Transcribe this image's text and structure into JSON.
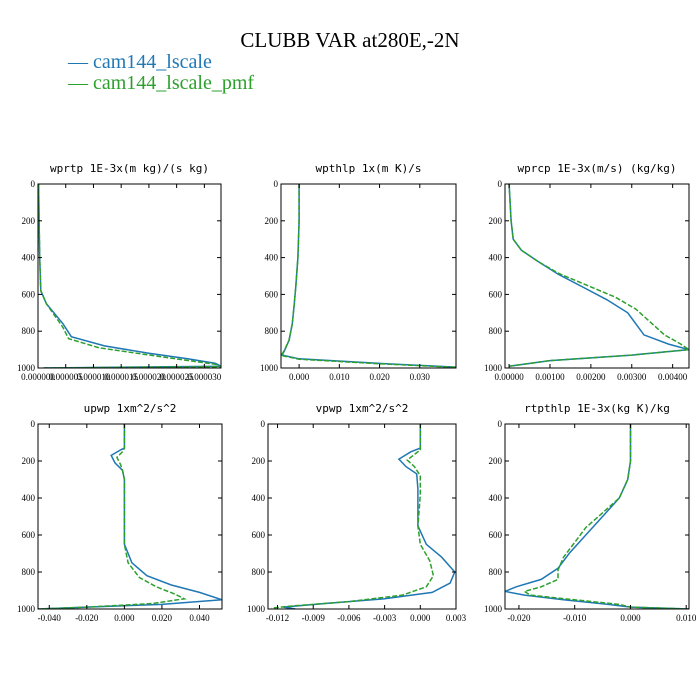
{
  "title": "CLUBB VAR at280E,-2N",
  "legend": [
    {
      "label": "— cam144_lscale",
      "color": "#1f77b4"
    },
    {
      "label": "— cam144_lscale_pmf",
      "color": "#2ca02c"
    }
  ],
  "chart_data": [
    {
      "type": "line",
      "title": "wprtp  1E-3x(m kg)/(s kg)",
      "xlim": [
        0.0,
        3.3e-05
      ],
      "ylim": [
        0,
        1000
      ],
      "y_inverted": true,
      "xticks": [
        0.0,
        5e-06,
        1e-05,
        1.5e-05,
        2e-05,
        2.5e-05,
        3e-05
      ],
      "xtick_labels": [
        "0.000000",
        "0.000005",
        "0.000010",
        "0.000015",
        "0.000020",
        "0.000025",
        "0.000030"
      ],
      "yticks": [
        0,
        200,
        400,
        600,
        800,
        1000
      ],
      "ytick_labels": [
        "0",
        "200",
        "400",
        "600",
        "800",
        "1000"
      ],
      "series": [
        {
          "name": "cam144_lscale",
          "color": "#1f77b4",
          "dashed": false,
          "points": [
            [
              1e-07,
              0
            ],
            [
              2e-07,
              200
            ],
            [
              3e-07,
              400
            ],
            [
              5e-07,
              580
            ],
            [
              1.5e-06,
              650
            ],
            [
              4.5e-06,
              760
            ],
            [
              6e-06,
              830
            ],
            [
              1.2e-05,
              880
            ],
            [
              2e-05,
              920
            ],
            [
              2.7e-05,
              950
            ],
            [
              3.2e-05,
              975
            ],
            [
              3.3e-05,
              990
            ],
            [
              1e-06,
              1000
            ]
          ]
        },
        {
          "name": "cam144_lscale_pmf",
          "color": "#2ca02c",
          "dashed": true,
          "points": [
            [
              1e-07,
              0
            ],
            [
              2e-07,
              200
            ],
            [
              3e-07,
              400
            ],
            [
              5e-07,
              580
            ],
            [
              1.5e-06,
              650
            ],
            [
              4.5e-06,
              780
            ],
            [
              5.5e-06,
              840
            ],
            [
              1.1e-05,
              890
            ],
            [
              1.9e-05,
              925
            ],
            [
              2.6e-05,
              955
            ],
            [
              3.2e-05,
              980
            ],
            [
              3.3e-05,
              993
            ],
            [
              1e-06,
              1000
            ]
          ]
        }
      ]
    },
    {
      "type": "line",
      "title": "wpthlp  1x(m K)/s",
      "xlim": [
        -0.0045,
        0.039
      ],
      "ylim": [
        0,
        1000
      ],
      "y_inverted": true,
      "xticks": [
        0.0,
        0.01,
        0.02,
        0.03
      ],
      "xtick_labels": [
        "0.000",
        "0.010",
        "0.020",
        "0.030"
      ],
      "yticks": [
        0,
        200,
        400,
        600,
        800,
        1000
      ],
      "ytick_labels": [
        "0",
        "200",
        "400",
        "600",
        "800",
        "1000"
      ],
      "series": [
        {
          "name": "cam144_lscale",
          "color": "#1f77b4",
          "dashed": false,
          "points": [
            [
              0.0,
              0
            ],
            [
              0.0,
              200
            ],
            [
              -0.0003,
              400
            ],
            [
              -0.0008,
              550
            ],
            [
              -0.0012,
              650
            ],
            [
              -0.0017,
              760
            ],
            [
              -0.0025,
              850
            ],
            [
              -0.0035,
              900
            ],
            [
              -0.0042,
              930
            ],
            [
              0.0,
              950
            ],
            [
              0.02,
              975
            ],
            [
              0.039,
              995
            ]
          ]
        },
        {
          "name": "cam144_lscale_pmf",
          "color": "#2ca02c",
          "dashed": true,
          "points": [
            [
              0.0,
              0
            ],
            [
              0.0,
              200
            ],
            [
              -0.0003,
              400
            ],
            [
              -0.0008,
              550
            ],
            [
              -0.0012,
              650
            ],
            [
              -0.0017,
              760
            ],
            [
              -0.0025,
              850
            ],
            [
              -0.0037,
              905
            ],
            [
              -0.0044,
              932
            ],
            [
              0.0,
              952
            ],
            [
              0.02,
              977
            ],
            [
              0.039,
              996
            ]
          ]
        }
      ]
    },
    {
      "type": "line",
      "title": "wprcp  1E-3x(m/s) (kg/kg)",
      "xlim": [
        -0.0001,
        0.0044
      ],
      "ylim": [
        0,
        1000
      ],
      "y_inverted": true,
      "xticks": [
        0.0,
        0.001,
        0.002,
        0.003,
        0.004
      ],
      "xtick_labels": [
        "0.00000",
        "0.00100",
        "0.00200",
        "0.00300",
        "0.00400"
      ],
      "yticks": [
        0,
        200,
        400,
        600,
        800,
        1000
      ],
      "ytick_labels": [
        "0",
        "200",
        "400",
        "600",
        "800",
        "1000"
      ],
      "series": [
        {
          "name": "cam144_lscale",
          "color": "#1f77b4",
          "dashed": false,
          "points": [
            [
              0.0,
              0
            ],
            [
              5e-05,
              200
            ],
            [
              0.0001,
              300
            ],
            [
              0.0003,
              360
            ],
            [
              0.0007,
              420
            ],
            [
              0.0012,
              490
            ],
            [
              0.0018,
              560
            ],
            [
              0.0024,
              630
            ],
            [
              0.0029,
              700
            ],
            [
              0.0031,
              760
            ],
            [
              0.0033,
              820
            ],
            [
              0.0039,
              870
            ],
            [
              0.0044,
              900
            ],
            [
              0.003,
              930
            ],
            [
              0.001,
              960
            ],
            [
              0.0,
              990
            ]
          ]
        },
        {
          "name": "cam144_lscale_pmf",
          "color": "#2ca02c",
          "dashed": true,
          "points": [
            [
              0.0,
              0
            ],
            [
              5e-05,
              200
            ],
            [
              0.0001,
              300
            ],
            [
              0.0003,
              360
            ],
            [
              0.0007,
              420
            ],
            [
              0.0012,
              485
            ],
            [
              0.0019,
              550
            ],
            [
              0.0026,
              615
            ],
            [
              0.0031,
              680
            ],
            [
              0.0035,
              760
            ],
            [
              0.0038,
              820
            ],
            [
              0.0042,
              870
            ],
            [
              0.0044,
              900
            ],
            [
              0.003,
              930
            ],
            [
              0.001,
              960
            ],
            [
              0.0,
              990
            ]
          ]
        }
      ]
    },
    {
      "type": "line",
      "title": "upwp  1xm^2/s^2",
      "xlim": [
        -0.046,
        0.052
      ],
      "ylim": [
        0,
        1000
      ],
      "y_inverted": true,
      "xticks": [
        -0.04,
        -0.02,
        0.0,
        0.02,
        0.04
      ],
      "xtick_labels": [
        "-0.040",
        "-0.020",
        "0.000",
        "0.020",
        "0.040"
      ],
      "yticks": [
        0,
        200,
        400,
        600,
        800,
        1000
      ],
      "ytick_labels": [
        "0",
        "200",
        "400",
        "600",
        "800",
        "1000"
      ],
      "series": [
        {
          "name": "cam144_lscale",
          "color": "#1f77b4",
          "dashed": false,
          "points": [
            [
              0.0,
              0
            ],
            [
              0.0,
              130
            ],
            [
              -0.002,
              140
            ],
            [
              -0.007,
              170
            ],
            [
              -0.005,
              210
            ],
            [
              -0.001,
              250
            ],
            [
              0.0,
              300
            ],
            [
              0.0,
              500
            ],
            [
              0.0,
              650
            ],
            [
              0.004,
              750
            ],
            [
              0.012,
              820
            ],
            [
              0.025,
              870
            ],
            [
              0.04,
              910
            ],
            [
              0.052,
              950
            ],
            [
              0.02,
              975
            ],
            [
              -0.02,
              990
            ],
            [
              -0.046,
              1000
            ]
          ]
        },
        {
          "name": "cam144_lscale_pmf",
          "color": "#2ca02c",
          "dashed": true,
          "points": [
            [
              0.0,
              0
            ],
            [
              0.0,
              130
            ],
            [
              -0.001,
              150
            ],
            [
              -0.004,
              180
            ],
            [
              -0.002,
              220
            ],
            [
              -0.001,
              250
            ],
            [
              0.0,
              300
            ],
            [
              0.0,
              500
            ],
            [
              0.0,
              650
            ],
            [
              0.002,
              750
            ],
            [
              0.008,
              830
            ],
            [
              0.017,
              880
            ],
            [
              0.027,
              920
            ],
            [
              0.032,
              945
            ],
            [
              0.015,
              970
            ],
            [
              -0.02,
              990
            ],
            [
              -0.046,
              1000
            ]
          ]
        }
      ]
    },
    {
      "type": "line",
      "title": "vpwp  1xm^2/s^2",
      "xlim": [
        -0.0128,
        0.003
      ],
      "ylim": [
        0,
        1000
      ],
      "y_inverted": true,
      "xticks": [
        -0.012,
        -0.009,
        -0.006,
        -0.003,
        0.0,
        0.003
      ],
      "xtick_labels": [
        "-0.012",
        "-0.009",
        "-0.006",
        "-0.003",
        "0.000",
        "0.003"
      ],
      "yticks": [
        0,
        200,
        400,
        600,
        800,
        1000
      ],
      "ytick_labels": [
        "0",
        "200",
        "400",
        "600",
        "800",
        "1000"
      ],
      "series": [
        {
          "name": "cam144_lscale",
          "color": "#1f77b4",
          "dashed": false,
          "points": [
            [
              0.0,
              0
            ],
            [
              0.0,
              130
            ],
            [
              -0.0008,
              150
            ],
            [
              -0.0018,
              190
            ],
            [
              -0.0012,
              230
            ],
            [
              -0.0003,
              270
            ],
            [
              -0.0002,
              350
            ],
            [
              -0.0002,
              450
            ],
            [
              -0.0002,
              550
            ],
            [
              0.0005,
              650
            ],
            [
              0.0018,
              720
            ],
            [
              0.0029,
              800
            ],
            [
              0.0025,
              860
            ],
            [
              0.001,
              910
            ],
            [
              -0.003,
              945
            ],
            [
              -0.008,
              970
            ],
            [
              -0.0115,
              990
            ],
            [
              -0.0105,
              1000
            ]
          ]
        },
        {
          "name": "cam144_lscale_pmf",
          "color": "#2ca02c",
          "dashed": true,
          "points": [
            [
              0.0,
              0
            ],
            [
              0.0,
              140
            ],
            [
              -0.0004,
              160
            ],
            [
              -0.0011,
              195
            ],
            [
              -0.0005,
              230
            ],
            [
              0.0,
              280
            ],
            [
              0.0,
              380
            ],
            [
              -0.0001,
              470
            ],
            [
              -0.0002,
              550
            ],
            [
              0.0,
              650
            ],
            [
              0.0008,
              740
            ],
            [
              0.0011,
              820
            ],
            [
              0.0005,
              880
            ],
            [
              -0.0015,
              925
            ],
            [
              -0.006,
              960
            ],
            [
              -0.011,
              985
            ],
            [
              -0.0125,
              995
            ]
          ]
        }
      ]
    },
    {
      "type": "line",
      "title": "rtpthlp  1E-3x(kg K)/kg",
      "xlim": [
        -0.0225,
        0.0105
      ],
      "ylim": [
        0,
        1000
      ],
      "y_inverted": true,
      "xticks": [
        -0.02,
        -0.01,
        0.0,
        0.01
      ],
      "xtick_labels": [
        "-0.020",
        "-0.010",
        "0.000",
        "0.010"
      ],
      "yticks": [
        0,
        200,
        400,
        600,
        800,
        1000
      ],
      "ytick_labels": [
        "0",
        "200",
        "400",
        "600",
        "800",
        "1000"
      ],
      "series": [
        {
          "name": "cam144_lscale",
          "color": "#1f77b4",
          "dashed": false,
          "points": [
            [
              0.0,
              0
            ],
            [
              0.0,
              200
            ],
            [
              -0.0005,
              300
            ],
            [
              -0.002,
              400
            ],
            [
              -0.005,
              500
            ],
            [
              -0.008,
              600
            ],
            [
              -0.011,
              700
            ],
            [
              -0.013,
              780
            ],
            [
              -0.016,
              840
            ],
            [
              -0.0205,
              880
            ],
            [
              -0.0225,
              905
            ],
            [
              -0.019,
              925
            ],
            [
              -0.012,
              950
            ],
            [
              -0.004,
              975
            ],
            [
              0.0,
              990
            ],
            [
              0.0105,
              1000
            ]
          ]
        },
        {
          "name": "cam144_lscale_pmf",
          "color": "#2ca02c",
          "dashed": true,
          "points": [
            [
              0.0,
              0
            ],
            [
              0.0,
              200
            ],
            [
              -0.0005,
              300
            ],
            [
              -0.002,
              400
            ],
            [
              -0.005,
              480
            ],
            [
              -0.008,
              560
            ],
            [
              -0.01,
              640
            ],
            [
              -0.012,
              720
            ],
            [
              -0.013,
              790
            ],
            [
              -0.013,
              840
            ],
            [
              -0.016,
              880
            ],
            [
              -0.019,
              905
            ],
            [
              -0.018,
              925
            ],
            [
              -0.01,
              950
            ],
            [
              -0.002,
              975
            ],
            [
              0.0,
              990
            ],
            [
              0.0105,
              1000
            ]
          ]
        }
      ]
    }
  ]
}
